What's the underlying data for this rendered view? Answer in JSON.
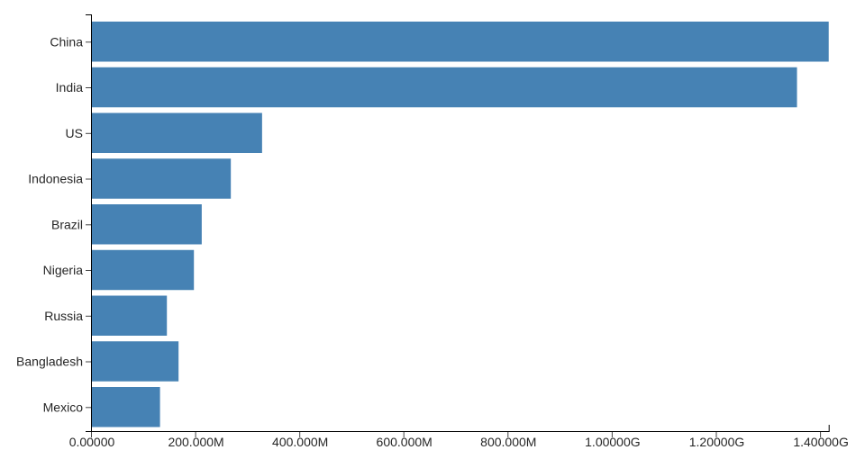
{
  "chart_data": {
    "type": "bar",
    "orientation": "horizontal",
    "title": "",
    "xlabel": "",
    "ylabel": "",
    "categories": [
      "China",
      "India",
      "US",
      "Indonesia",
      "Brazil",
      "Nigeria",
      "Russia",
      "Bangladesh",
      "Mexico"
    ],
    "values_millions": [
      1415.0,
      1354.1,
      326.8,
      266.8,
      210.9,
      195.9,
      144.0,
      166.4,
      130.8
    ],
    "x_tick_labels": [
      "0.00000",
      "200.000M",
      "400.000M",
      "600.000M",
      "800.000M",
      "1.00000G",
      "1.20000G",
      "1.40000G"
    ],
    "x_tick_values_millions": [
      0,
      200,
      400,
      600,
      800,
      1000,
      1200,
      1400
    ],
    "xlim_millions": [
      0,
      1415.0
    ],
    "grid": false,
    "legend": false,
    "bar_color": "#4682b4",
    "axis_color": "#000000",
    "tick_color": "#444444",
    "text_color": "#262626"
  }
}
